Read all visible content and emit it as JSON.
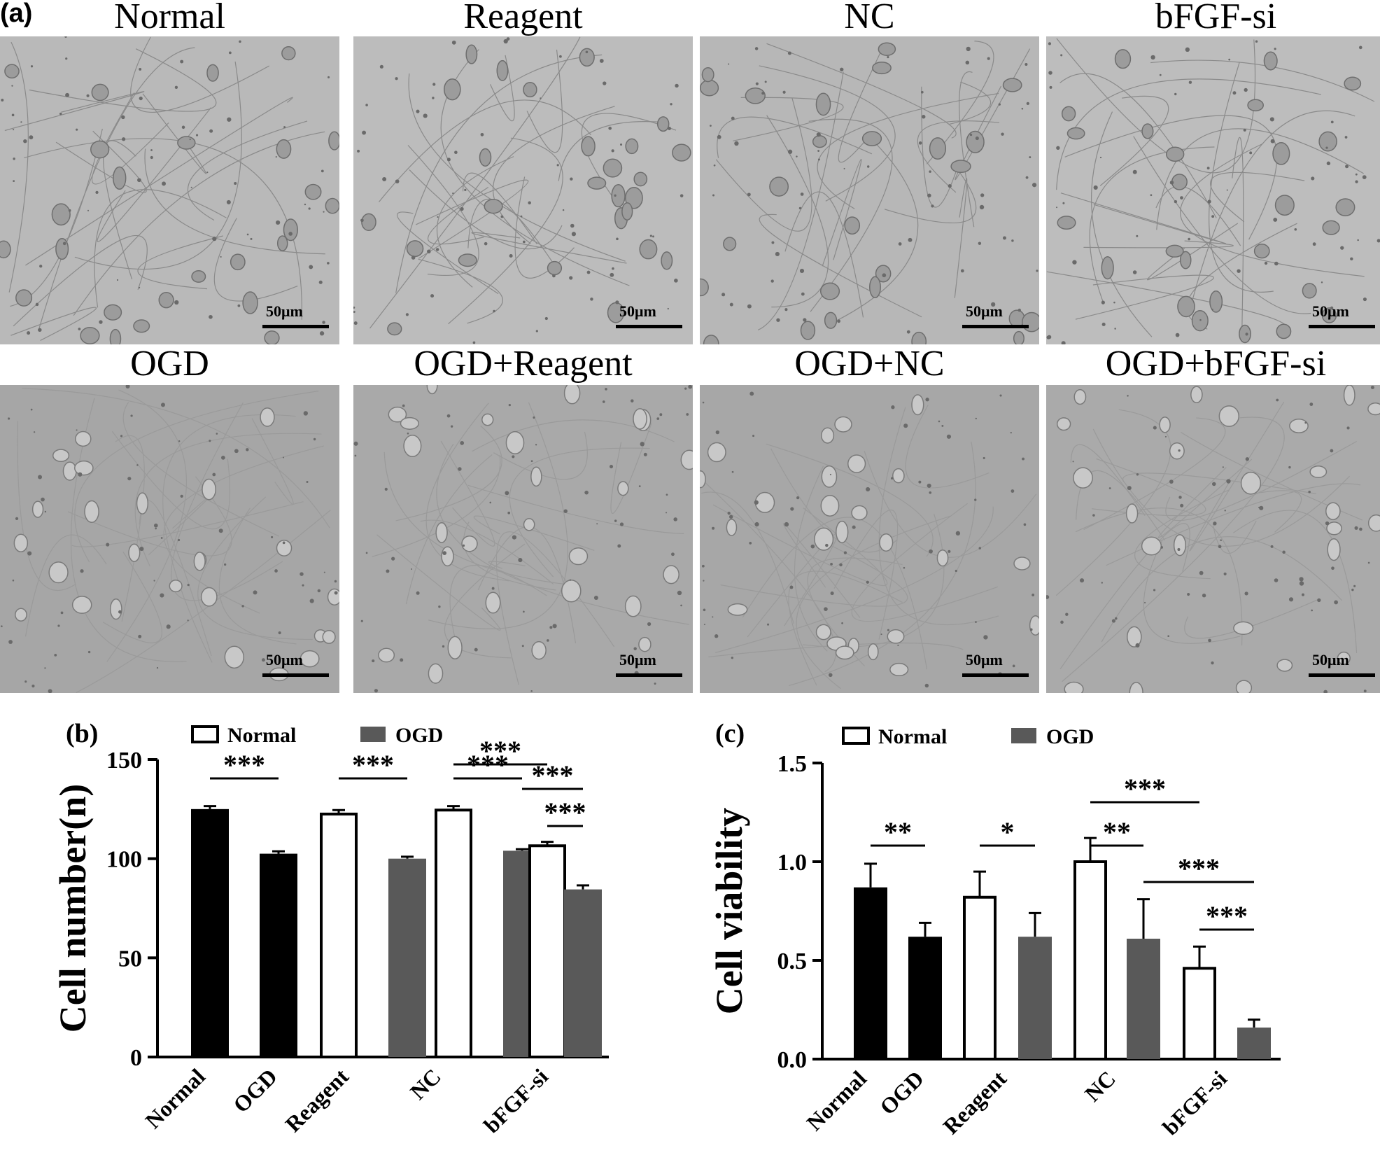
{
  "panel_a": {
    "letter": "(a)",
    "images": [
      {
        "title": "Normal",
        "scale": "50μm",
        "tone": "#b9b9b9"
      },
      {
        "title": "Reagent",
        "scale": "50μm",
        "tone": "#bcbcbc"
      },
      {
        "title": "NC",
        "scale": "50μm",
        "tone": "#b7b7b7"
      },
      {
        "title": "bFGF-si",
        "scale": "50μm",
        "tone": "#bdbdbd"
      },
      {
        "title": "OGD",
        "scale": "50μm",
        "tone": "#a6a6a6"
      },
      {
        "title": "OGD+Reagent",
        "scale": "50μm",
        "tone": "#a9a9a9"
      },
      {
        "title": "OGD+NC",
        "scale": "50μm",
        "tone": "#a7a7a7"
      },
      {
        "title": "OGD+bFGF-si",
        "scale": "50μm",
        "tone": "#aaaaaa"
      }
    ]
  },
  "chart_data": [
    {
      "panel": "(b)",
      "type": "bar",
      "ylabel": "Cell number(n)",
      "ylim": [
        0,
        150
      ],
      "yticks": [
        "0",
        "50",
        "100",
        "150"
      ],
      "legend": [
        "Normal",
        "OGD"
      ],
      "legend_placement": "top",
      "categories": [
        "Normal",
        "OGD",
        "Reagent",
        "NC",
        "bFGF-si"
      ],
      "bars": [
        {
          "category": "Normal",
          "value": 125,
          "error": 1.5,
          "style": "black"
        },
        {
          "category": "OGD",
          "value": 102.5,
          "error": 1.2,
          "style": "black"
        },
        {
          "category": "Reagent",
          "value": 122.5,
          "error": 2,
          "style": "white"
        },
        {
          "category": "Reagent",
          "value": 100,
          "error": 1,
          "style": "gray"
        },
        {
          "category": "NC",
          "value": 124.5,
          "error": 2,
          "style": "white"
        },
        {
          "category": "NC",
          "value": 104,
          "error": 0.8,
          "style": "gray"
        },
        {
          "category": "bFGF-si",
          "value": 106.5,
          "error": 2,
          "style": "white"
        },
        {
          "category": "bFGF-si",
          "value": 84.5,
          "error": 2,
          "style": "gray"
        }
      ],
      "significance": [
        {
          "from": 0,
          "to": 1,
          "level": 1,
          "label": "***"
        },
        {
          "from": 2,
          "to": 3,
          "level": 1,
          "label": "***"
        },
        {
          "from": 4,
          "to": 5,
          "level": 1,
          "label": "***"
        },
        {
          "from": 5,
          "to": 7,
          "level": 2,
          "label": "***"
        },
        {
          "from": 6,
          "to": 7,
          "level": 0,
          "label": "***"
        },
        {
          "from": 4,
          "to": 6,
          "level": 3,
          "label": "***"
        }
      ],
      "colors": {
        "black": "#000000",
        "gray": "#595959",
        "white": "#ffffff"
      }
    },
    {
      "panel": "(c)",
      "type": "bar",
      "ylabel": "Cell viability",
      "ylim": [
        0,
        1.5
      ],
      "yticks": [
        "0.0",
        "0.5",
        "1.0",
        "1.5"
      ],
      "legend": [
        "Normal",
        "OGD"
      ],
      "legend_placement": "top",
      "categories": [
        "Normal",
        "OGD",
        "Reagent",
        "NC",
        "bFGF-si"
      ],
      "bars": [
        {
          "category": "Normal",
          "value": 0.87,
          "error": 0.12,
          "style": "black"
        },
        {
          "category": "OGD",
          "value": 0.62,
          "error": 0.07,
          "style": "black"
        },
        {
          "category": "Reagent",
          "value": 0.82,
          "error": 0.13,
          "style": "white"
        },
        {
          "category": "Reagent",
          "value": 0.62,
          "error": 0.12,
          "style": "gray"
        },
        {
          "category": "NC",
          "value": 1.0,
          "error": 0.12,
          "style": "white"
        },
        {
          "category": "NC",
          "value": 0.61,
          "error": 0.2,
          "style": "gray"
        },
        {
          "category": "bFGF-si",
          "value": 0.46,
          "error": 0.11,
          "style": "white"
        },
        {
          "category": "bFGF-si",
          "value": 0.16,
          "error": 0.04,
          "style": "gray"
        }
      ],
      "significance": [
        {
          "from": 0,
          "to": 1,
          "level": 1,
          "label": "**"
        },
        {
          "from": 2,
          "to": 3,
          "level": 1,
          "label": "*"
        },
        {
          "from": 4,
          "to": 5,
          "level": 1,
          "label": "**"
        },
        {
          "from": 4,
          "to": 6,
          "level": 2,
          "label": "***"
        },
        {
          "from": 5,
          "to": 7,
          "level": 0,
          "label": "***"
        },
        {
          "from": 6,
          "to": 7,
          "level": -1,
          "label": "***"
        }
      ],
      "colors": {
        "black": "#000000",
        "gray": "#595959",
        "white": "#ffffff"
      }
    }
  ]
}
